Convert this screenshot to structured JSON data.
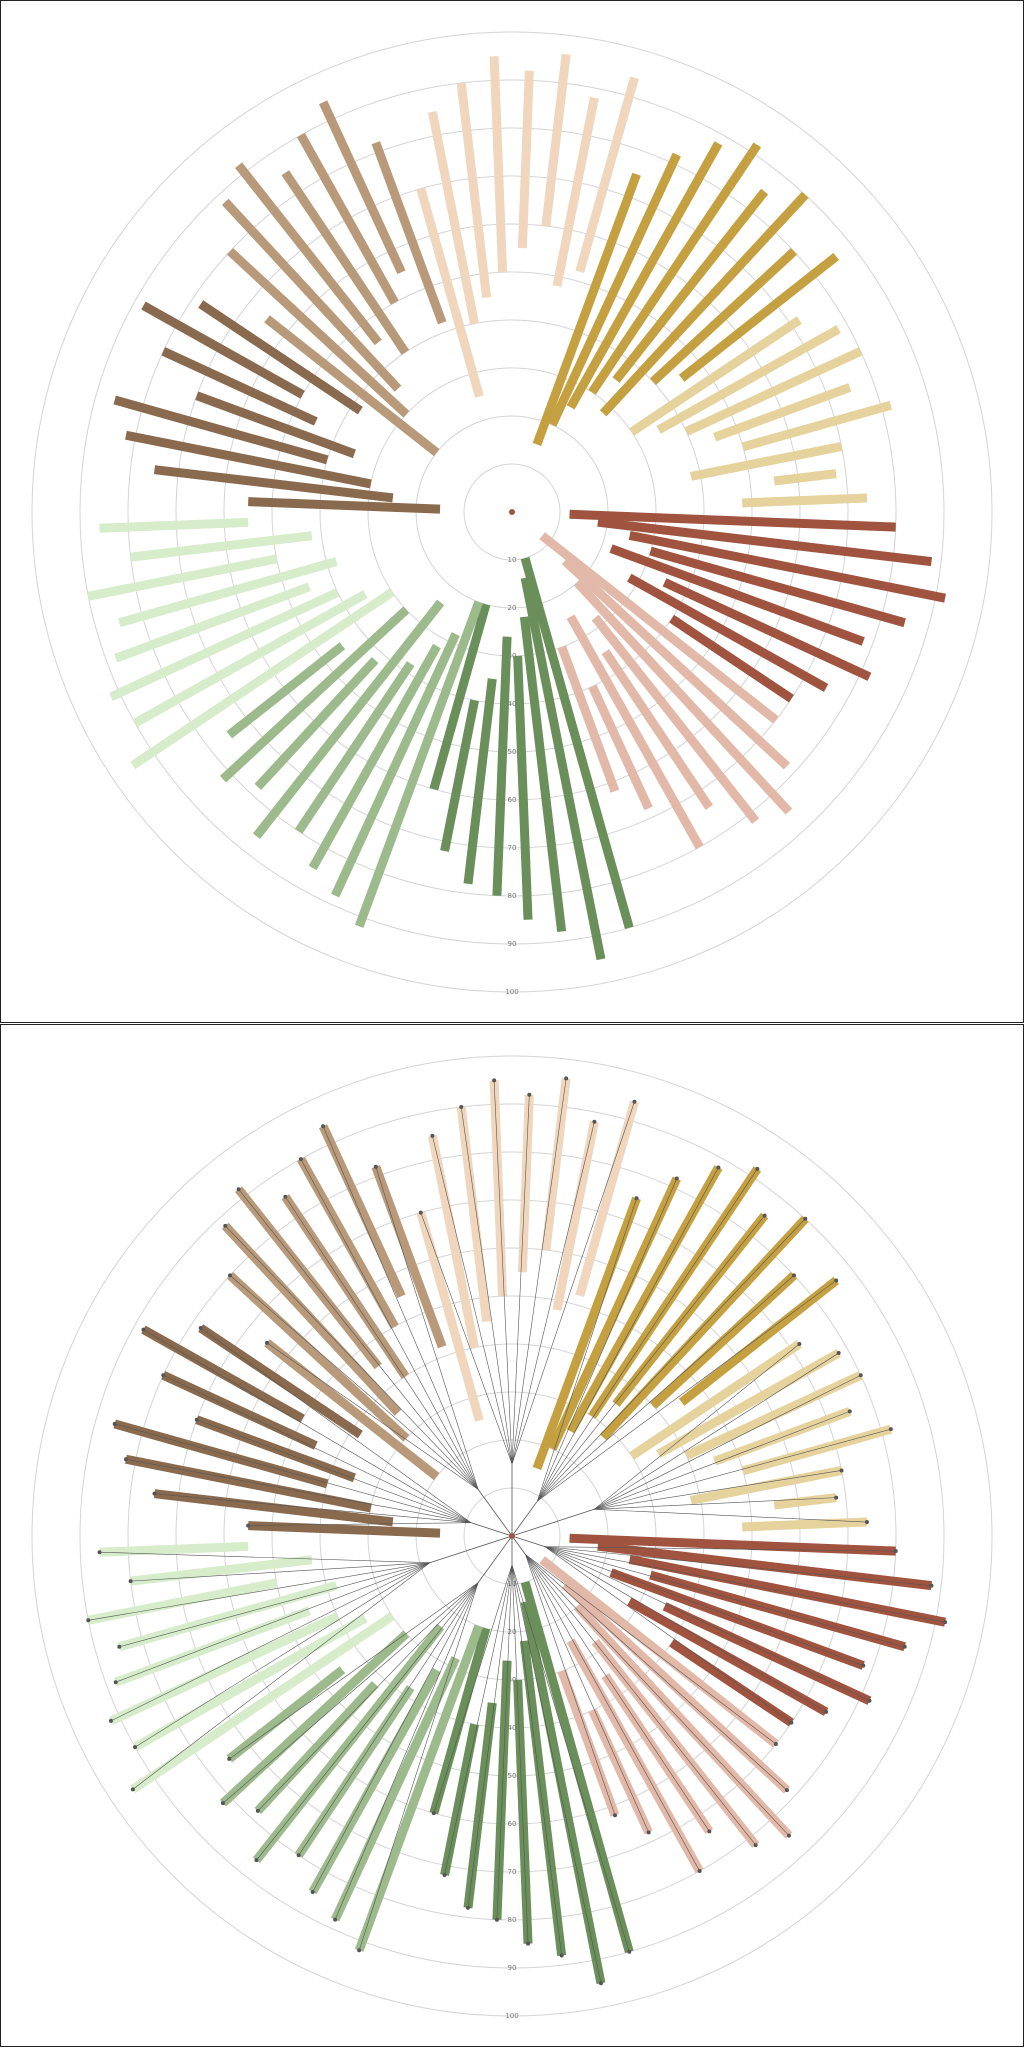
{
  "chart_data": [
    {
      "type": "radial-bar",
      "tree": false,
      "rlim": [
        0,
        100
      ],
      "rticks": [
        10,
        20,
        30,
        40,
        50,
        60,
        70,
        80,
        90,
        100
      ],
      "series": [
        {
          "color": "#a0543f",
          "start": [
            12,
            18,
            25,
            30,
            22,
            35,
            28,
            40
          ],
          "end": [
            80,
            88,
            92,
            85,
            78,
            82,
            75,
            70
          ]
        },
        {
          "color": "#e2b8a8",
          "start": [
            8,
            15,
            20,
            28,
            35,
            25,
            40,
            30
          ],
          "end": [
            70,
            78,
            85,
            82,
            74,
            80,
            68,
            62
          ]
        },
        {
          "color": "#6a8f5a",
          "start": [
            10,
            14,
            22,
            30,
            26,
            35,
            40,
            20
          ],
          "end": [
            90,
            95,
            88,
            85,
            80,
            78,
            72,
            60
          ]
        },
        {
          "color": "#9cba8c",
          "start": [
            20,
            28,
            32,
            38,
            24,
            42,
            30,
            45
          ],
          "end": [
            92,
            88,
            85,
            80,
            86,
            78,
            82,
            75
          ]
        },
        {
          "color": "#d6ecca",
          "start": [
            30,
            35,
            40,
            45,
            38,
            50,
            42,
            55
          ],
          "end": [
            95,
            90,
            92,
            88,
            85,
            90,
            80,
            86
          ]
        },
        {
          "color": "#8a6a4e",
          "start": [
            15,
            25,
            30,
            40,
            35,
            45,
            50,
            38
          ],
          "end": [
            55,
            75,
            82,
            86,
            70,
            80,
            88,
            78
          ]
        },
        {
          "color": "#b89a7a",
          "start": [
            20,
            30,
            35,
            45,
            40,
            50,
            55,
            42
          ],
          "end": [
            65,
            80,
            88,
            92,
            85,
            90,
            94,
            82
          ]
        },
        {
          "color": "#f0d6bc",
          "start": [
            25,
            40,
            45,
            50,
            55,
            60,
            48,
            52
          ],
          "end": [
            70,
            85,
            90,
            95,
            92,
            96,
            88,
            94
          ]
        },
        {
          "color": "#c4a040",
          "start": [
            15,
            20,
            25,
            30,
            35,
            28,
            40,
            45
          ],
          "end": [
            75,
            82,
            88,
            92,
            85,
            90,
            80,
            86
          ]
        },
        {
          "color": "#e6d29c",
          "start": [
            30,
            35,
            40,
            45,
            50,
            38,
            55,
            48
          ],
          "end": [
            72,
            78,
            80,
            75,
            82,
            70,
            68,
            74
          ]
        }
      ]
    },
    {
      "type": "radial-bar",
      "tree": true,
      "rlim": [
        0,
        100
      ],
      "rticks": [
        10,
        20,
        30,
        40,
        50,
        60,
        70,
        80,
        90,
        100
      ],
      "series": [
        {
          "color": "#a0543f",
          "start": [
            12,
            18,
            25,
            30,
            22,
            35,
            28,
            40
          ],
          "end": [
            80,
            88,
            92,
            85,
            78,
            82,
            75,
            70
          ]
        },
        {
          "color": "#e2b8a8",
          "start": [
            8,
            15,
            20,
            28,
            35,
            25,
            40,
            30
          ],
          "end": [
            70,
            78,
            85,
            82,
            74,
            80,
            68,
            62
          ]
        },
        {
          "color": "#6a8f5a",
          "start": [
            10,
            14,
            22,
            30,
            26,
            35,
            40,
            20
          ],
          "end": [
            90,
            95,
            88,
            85,
            80,
            78,
            72,
            60
          ]
        },
        {
          "color": "#9cba8c",
          "start": [
            20,
            28,
            32,
            38,
            24,
            42,
            30,
            45
          ],
          "end": [
            92,
            88,
            85,
            80,
            86,
            78,
            82,
            75
          ]
        },
        {
          "color": "#d6ecca",
          "start": [
            30,
            35,
            40,
            45,
            38,
            50,
            42,
            55
          ],
          "end": [
            95,
            90,
            92,
            88,
            85,
            90,
            80,
            86
          ]
        },
        {
          "color": "#8a6a4e",
          "start": [
            15,
            25,
            30,
            40,
            35,
            45,
            50,
            38
          ],
          "end": [
            55,
            75,
            82,
            86,
            70,
            80,
            88,
            78
          ]
        },
        {
          "color": "#b89a7a",
          "start": [
            20,
            30,
            35,
            45,
            40,
            50,
            55,
            42
          ],
          "end": [
            65,
            80,
            88,
            92,
            85,
            90,
            94,
            82
          ]
        },
        {
          "color": "#f0d6bc",
          "start": [
            25,
            40,
            45,
            50,
            55,
            60,
            48,
            52
          ],
          "end": [
            70,
            85,
            90,
            95,
            92,
            96,
            88,
            94
          ]
        },
        {
          "color": "#c4a040",
          "start": [
            15,
            20,
            25,
            30,
            35,
            28,
            40,
            45
          ],
          "end": [
            75,
            82,
            88,
            92,
            85,
            90,
            80,
            86
          ]
        },
        {
          "color": "#e6d29c",
          "start": [
            30,
            35,
            40,
            45,
            50,
            38,
            55,
            48
          ],
          "end": [
            72,
            78,
            80,
            75,
            82,
            70,
            68,
            74
          ]
        }
      ]
    }
  ]
}
